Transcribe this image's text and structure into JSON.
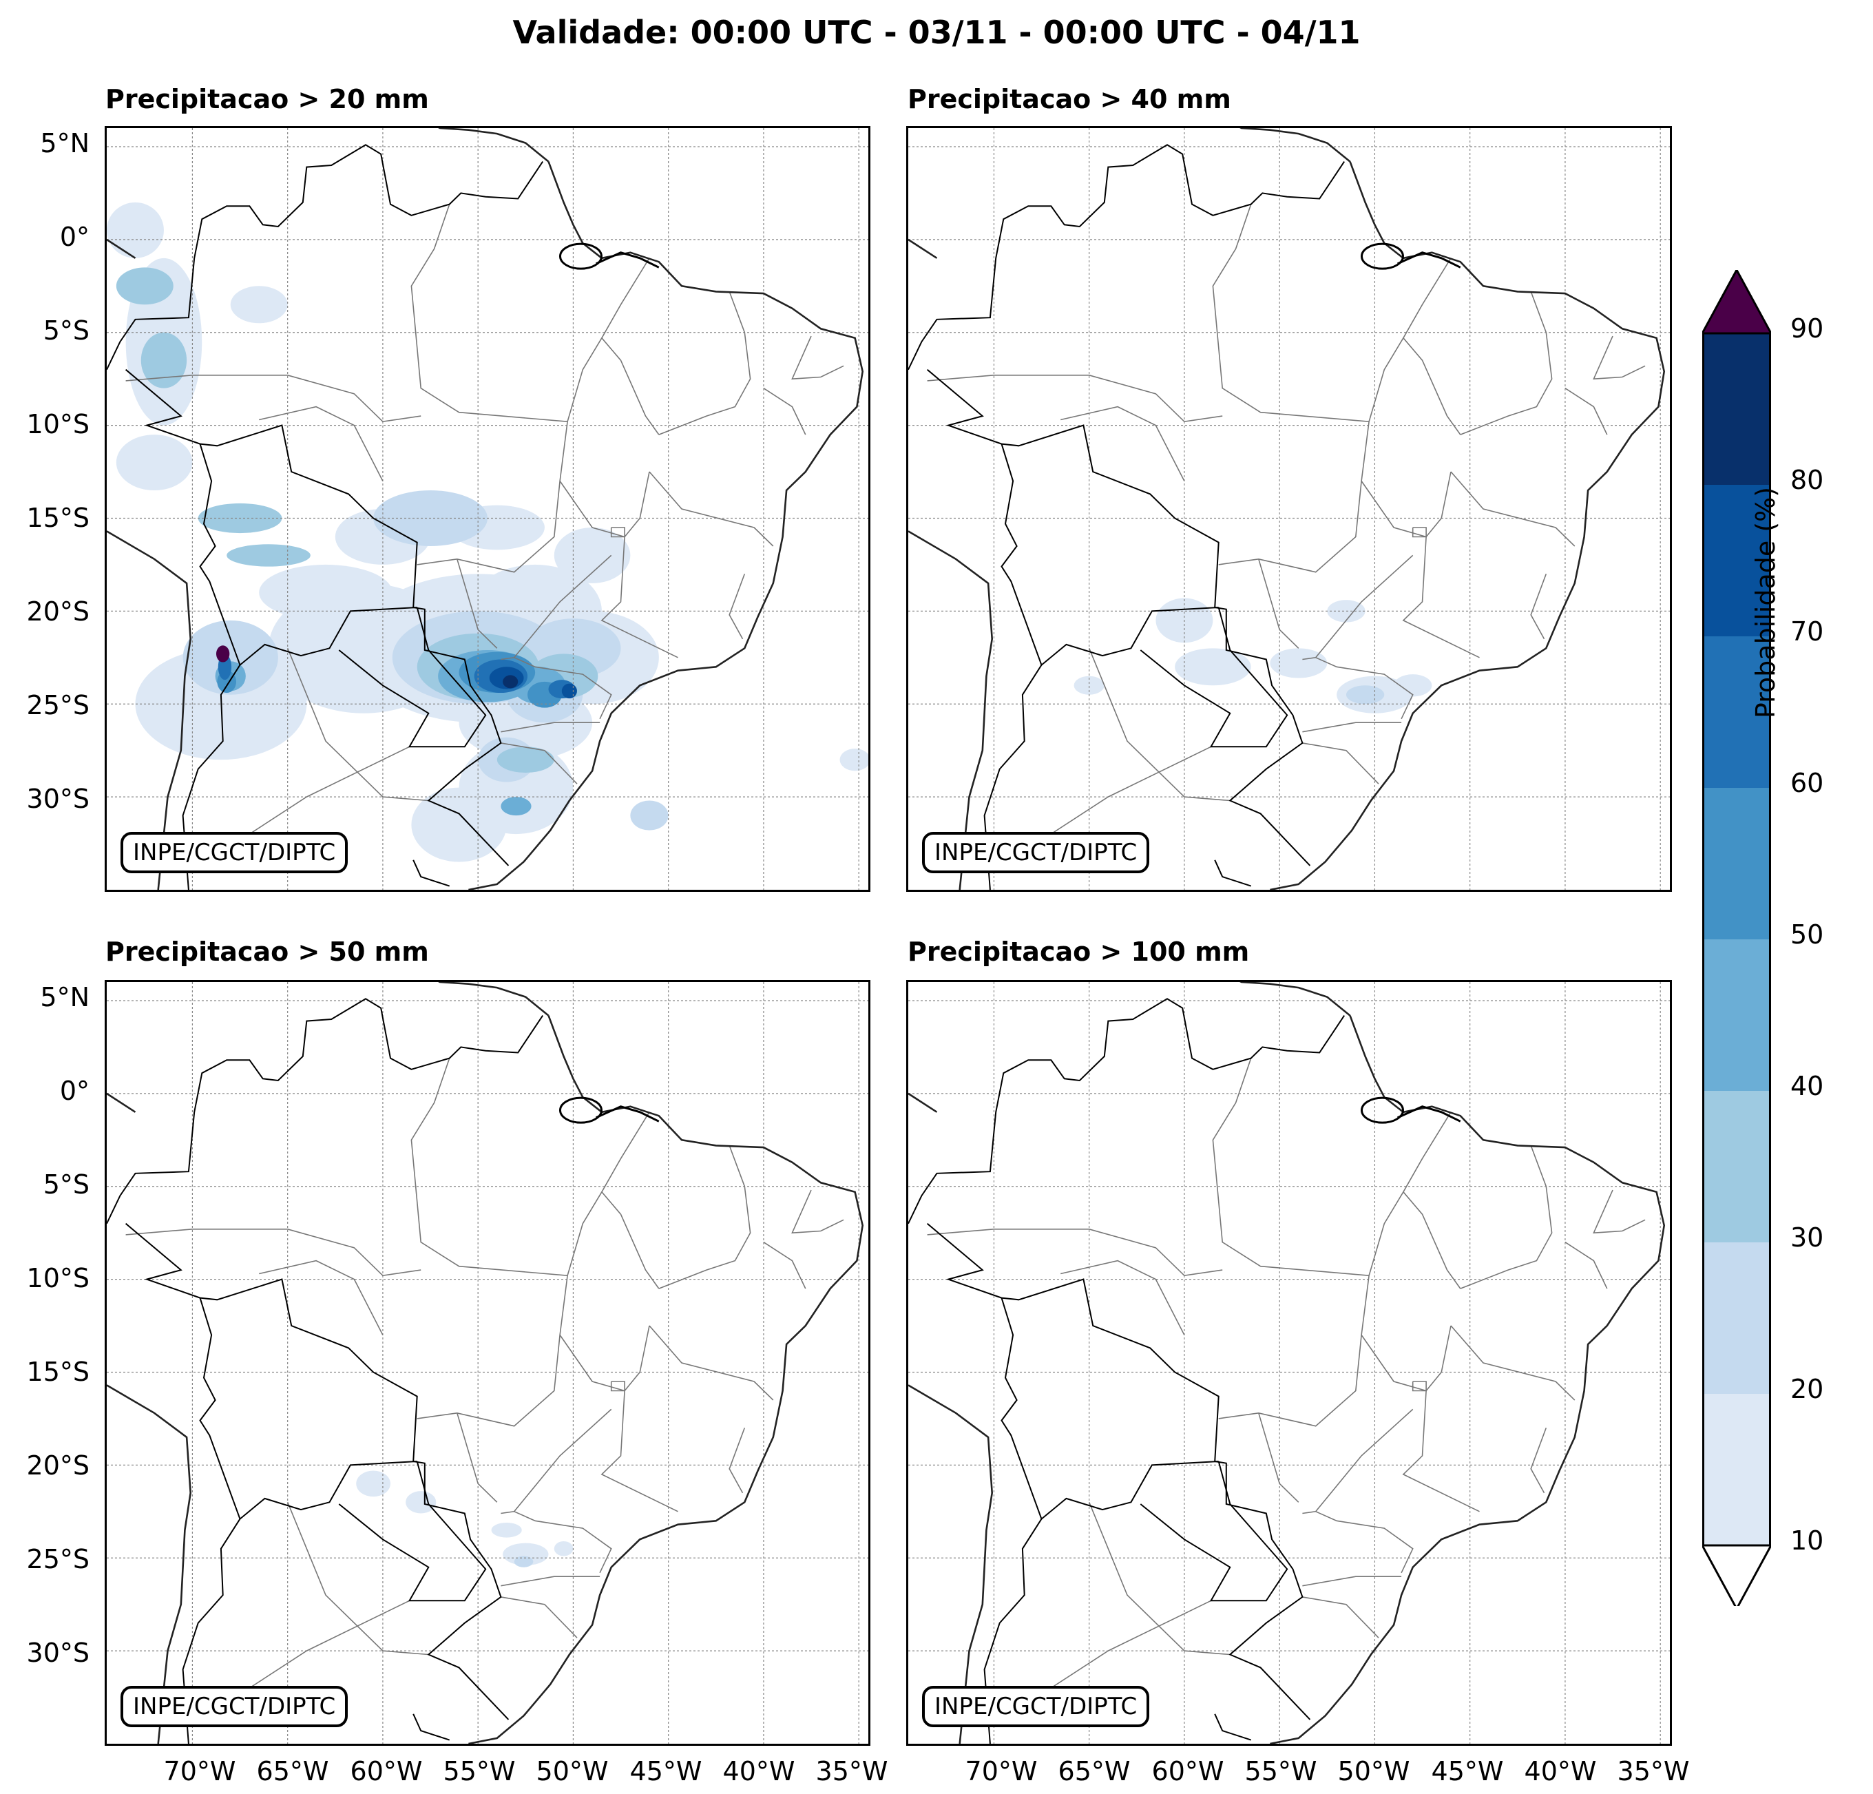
{
  "title": "Validade: 00:00 UTC - 03/11 - 00:00 UTC - 04/11",
  "panels": [
    {
      "title": "Precipitacao > 20 mm",
      "credit": "INPE/CGCT/DIPTC"
    },
    {
      "title": "Precipitacao > 40 mm",
      "credit": "INPE/CGCT/DIPTC"
    },
    {
      "title": "Precipitacao > 50 mm",
      "credit": "INPE/CGCT/DIPTC"
    },
    {
      "title": "Precipitacao > 100 mm",
      "credit": "INPE/CGCT/DIPTC"
    }
  ],
  "lat_labels": [
    "5°N",
    "0°",
    "5°S",
    "10°S",
    "15°S",
    "20°S",
    "25°S",
    "30°S"
  ],
  "lon_labels": [
    "70°W",
    "65°W",
    "60°W",
    "55°W",
    "50°W",
    "45°W",
    "40°W",
    "35°W"
  ],
  "colorbar": {
    "label": "Probabilidade (%)",
    "ticks": [
      "10",
      "20",
      "30",
      "40",
      "50",
      "60",
      "70",
      "80",
      "90"
    ],
    "colors": [
      "#dde8f5",
      "#c5daef",
      "#9ecae1",
      "#6baed6",
      "#4292c6",
      "#2171b5",
      "#08519c",
      "#08306b"
    ],
    "over_color": "#4a0048",
    "under_color": "#ffffff"
  }
}
